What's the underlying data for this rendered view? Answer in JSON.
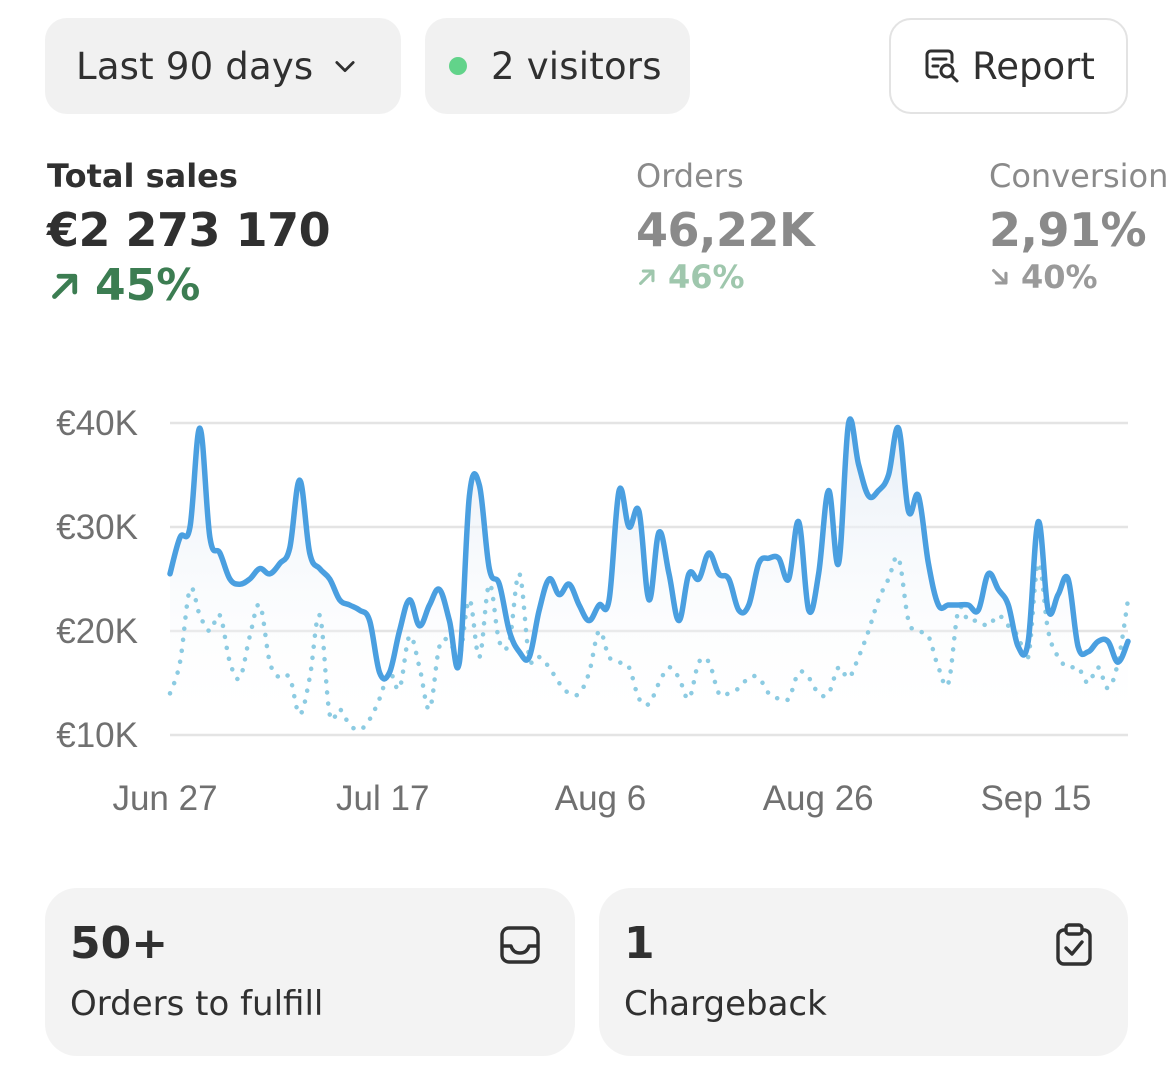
{
  "toolbar": {
    "date_range": "Last 90 days",
    "visitors": "2 visitors",
    "report_label": "Report"
  },
  "colors": {
    "live_dot": "#62d38a",
    "primary_line": "#4a9fe0",
    "comparison_line": "#8ccbe2",
    "positive_delta": "#3c7d52"
  },
  "metrics": {
    "sales": {
      "label": "Total sales",
      "value": "€2 273 170",
      "delta": "45%",
      "direction": "up"
    },
    "orders": {
      "label": "Orders",
      "value": "46,22K",
      "delta": "46%",
      "direction": "up"
    },
    "conversion": {
      "label": "Conversion",
      "value": "2,91%",
      "delta": "40%",
      "direction": "down"
    }
  },
  "chart_data": {
    "type": "line",
    "ylim": [
      10000,
      40000
    ],
    "y_ticks": [
      "€10K",
      "€20K",
      "€30K",
      "€40K"
    ],
    "y_tick_values": [
      10000,
      20000,
      30000,
      40000
    ],
    "x_ticks": [
      {
        "label": "Jun 27",
        "day": 0
      },
      {
        "label": "Jul 17",
        "day": 20
      },
      {
        "label": "Aug 6",
        "day": 40
      },
      {
        "label": "Aug 26",
        "day": 60
      },
      {
        "label": "Sep 15",
        "day": 80
      }
    ],
    "x_domain": [
      0,
      88
    ],
    "grid": true,
    "legend": "none",
    "series": [
      {
        "style": "solid",
        "values": [
          25500,
          29000,
          30000,
          39500,
          29000,
          27500,
          25000,
          24500,
          25000,
          26000,
          25500,
          26500,
          28000,
          34500,
          27500,
          26000,
          25000,
          23000,
          22500,
          22000,
          21000,
          16000,
          16000,
          20000,
          23000,
          20500,
          22500,
          24000,
          21000,
          17000,
          33000,
          34000,
          26000,
          24500,
          20000,
          18000,
          17500,
          22000,
          25000,
          23500,
          24500,
          22500,
          21000,
          22500,
          23000,
          33500,
          30000,
          31500,
          23000,
          29500,
          25500,
          21000,
          25500,
          25000,
          27500,
          25500,
          25000,
          22000,
          22500,
          26500,
          27000,
          27000,
          25000,
          30500,
          22000,
          25500,
          33500,
          26500,
          40000,
          36000,
          33000,
          33500,
          35000,
          39500,
          31500,
          33000,
          26500,
          22500,
          22500,
          22500,
          22500,
          22000,
          25500,
          24000,
          22500,
          18500,
          19000,
          30500,
          22000,
          23500,
          25000,
          18500,
          18000,
          19000,
          19000,
          17000,
          19000
        ]
      },
      {
        "style": "dotted",
        "values": [
          14000,
          17000,
          24000,
          21500,
          20000,
          21500,
          17000,
          15500,
          19500,
          22500,
          17000,
          15500,
          15500,
          12000,
          15500,
          21500,
          12000,
          12500,
          11000,
          10500,
          11500,
          13500,
          16000,
          14500,
          19500,
          16500,
          12500,
          18500,
          19000,
          17500,
          23000,
          17500,
          24500,
          19000,
          19000,
          25500,
          17500,
          17500,
          16500,
          15000,
          14000,
          14000,
          16000,
          20000,
          17500,
          17000,
          16500,
          13500,
          13000,
          15000,
          16500,
          15500,
          13500,
          17000,
          17000,
          14000,
          14000,
          14500,
          15500,
          15500,
          14000,
          13500,
          13500,
          16000,
          15500,
          14000,
          14000,
          16500,
          15500,
          17500,
          20000,
          23000,
          25000,
          27000,
          21000,
          20000,
          19500,
          16500,
          15000,
          22000,
          21000,
          21000,
          20500,
          21500,
          20500,
          19500,
          17500,
          26500,
          20000,
          17500,
          16500,
          16500,
          15000,
          16500,
          14500,
          17000,
          23000
        ]
      }
    ]
  },
  "cards": [
    {
      "value": "50+",
      "label": "Orders to fulfill",
      "icon": "inbox-icon"
    },
    {
      "value": "1",
      "label": "Chargeback",
      "icon": "clipboard-check-icon"
    }
  ]
}
